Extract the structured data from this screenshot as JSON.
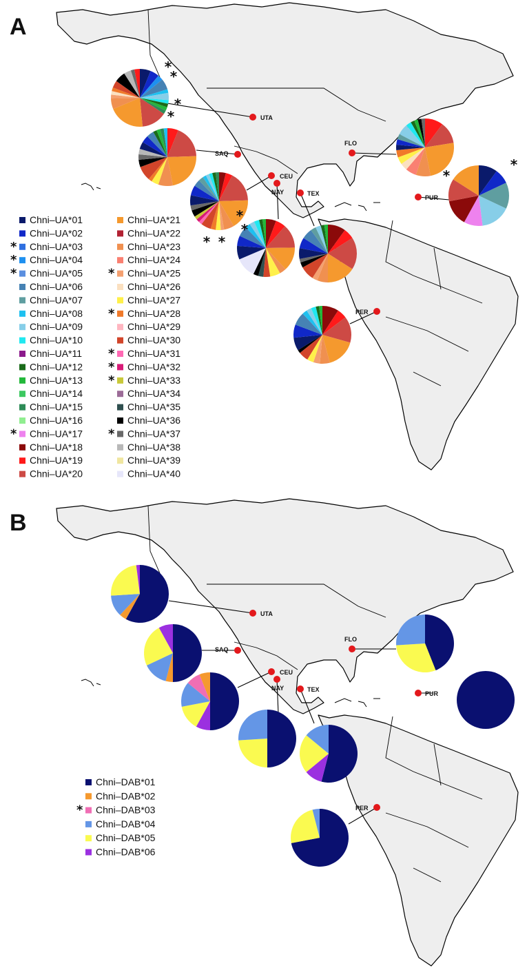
{
  "panels": [
    {
      "letter": "A",
      "sites": [
        {
          "code": "UTA"
        },
        {
          "code": "SAQ"
        },
        {
          "code": "FLO"
        },
        {
          "code": "CEU"
        },
        {
          "code": "NAY"
        },
        {
          "code": "TEX"
        },
        {
          "code": "PUR"
        },
        {
          "code": "PER"
        }
      ],
      "legend": [
        {
          "label": "Chni–UA*01",
          "color": "#0a1a6b",
          "star": false
        },
        {
          "label": "Chni–UA*02",
          "color": "#1028c8",
          "star": false
        },
        {
          "label": "Chni–UA*03",
          "color": "#2f6fe0",
          "star": true
        },
        {
          "label": "Chni–UA*04",
          "color": "#1e90f0",
          "star": true
        },
        {
          "label": "Chni–UA*05",
          "color": "#5b8fe0",
          "star": true
        },
        {
          "label": "Chni–UA*06",
          "color": "#4682b4",
          "star": false
        },
        {
          "label": "Chni–UA*07",
          "color": "#5f9ea0",
          "star": false
        },
        {
          "label": "Chni–UA*08",
          "color": "#1ec0f0",
          "star": false
        },
        {
          "label": "Chni–UA*09",
          "color": "#87cee8",
          "star": false
        },
        {
          "label": "Chni–UA*10",
          "color": "#20e8f0",
          "star": false
        },
        {
          "label": "Chni–UA*11",
          "color": "#8b1a8b",
          "star": false
        },
        {
          "label": "Chni–UA*12",
          "color": "#1a6b1a",
          "star": false
        },
        {
          "label": "Chni–UA*13",
          "color": "#22b83a",
          "star": false
        },
        {
          "label": "Chni–UA*14",
          "color": "#3cc860",
          "star": false
        },
        {
          "label": "Chni–UA*15",
          "color": "#2e8b57",
          "star": false
        },
        {
          "label": "Chni–UA*16",
          "color": "#90ee90",
          "star": false
        },
        {
          "label": "Chni–UA*17",
          "color": "#ee82ee",
          "star": true
        },
        {
          "label": "Chni–UA*18",
          "color": "#8b0a0a",
          "star": false
        },
        {
          "label": "Chni–UA*19",
          "color": "#ff1a1a",
          "star": false
        },
        {
          "label": "Chni–UA*20",
          "color": "#cd4a45",
          "star": false
        },
        {
          "label": "Chni–UA*21",
          "color": "#f5992e",
          "star": false
        },
        {
          "label": "Chni–UA*22",
          "color": "#b22233",
          "star": false
        },
        {
          "label": "Chni–UA*23",
          "color": "#f09050",
          "star": false
        },
        {
          "label": "Chni–UA*24",
          "color": "#fa8072",
          "star": false
        },
        {
          "label": "Chni–UA*25",
          "color": "#f4a070",
          "star": true
        },
        {
          "label": "Chni–UA*26",
          "color": "#fbe0c0",
          "star": false
        },
        {
          "label": "Chni–UA*27",
          "color": "#fff04a",
          "star": false
        },
        {
          "label": "Chni–UA*28",
          "color": "#f07a2a",
          "star": true
        },
        {
          "label": "Chni–UA*29",
          "color": "#ffb6c1",
          "star": false
        },
        {
          "label": "Chni–UA*30",
          "color": "#d2452a",
          "star": false
        },
        {
          "label": "Chni–UA*31",
          "color": "#ff69b4",
          "star": true
        },
        {
          "label": "Chni–UA*32",
          "color": "#d81b78",
          "star": true
        },
        {
          "label": "Chni–UA*33",
          "color": "#c8c83a",
          "star": true
        },
        {
          "label": "Chni–UA*34",
          "color": "#9c6c98",
          "star": false
        },
        {
          "label": "Chni–UA*35",
          "color": "#2f4f4f",
          "star": false
        },
        {
          "label": "Chni–UA*36",
          "color": "#000000",
          "star": false
        },
        {
          "label": "Chni–UA*37",
          "color": "#696969",
          "star": true
        },
        {
          "label": "Chni–UA*38",
          "color": "#b8b8b8",
          "star": false
        },
        {
          "label": "Chni–UA*39",
          "color": "#f0e6a0",
          "star": false
        },
        {
          "label": "Chni–UA*40",
          "color": "#e6e6fa",
          "star": false
        }
      ]
    },
    {
      "letter": "B",
      "sites": [
        {
          "code": "UTA"
        },
        {
          "code": "SAQ"
        },
        {
          "code": "FLO"
        },
        {
          "code": "CEU"
        },
        {
          "code": "NAY"
        },
        {
          "code": "TEX"
        },
        {
          "code": "PUR"
        },
        {
          "code": "PER"
        }
      ],
      "legend": [
        {
          "label": "Chni–DAB*01",
          "color": "#0a1070",
          "star": false
        },
        {
          "label": "Chni–DAB*02",
          "color": "#f5992e",
          "star": false
        },
        {
          "label": "Chni–DAB*03",
          "color": "#f06eb4",
          "star": true
        },
        {
          "label": "Chni–DAB*04",
          "color": "#6496e6",
          "star": false
        },
        {
          "label": "Chni–DAB*05",
          "color": "#fafa50",
          "star": false
        },
        {
          "label": "Chni–DAB*06",
          "color": "#9b30e0",
          "star": false
        }
      ]
    }
  ]
}
